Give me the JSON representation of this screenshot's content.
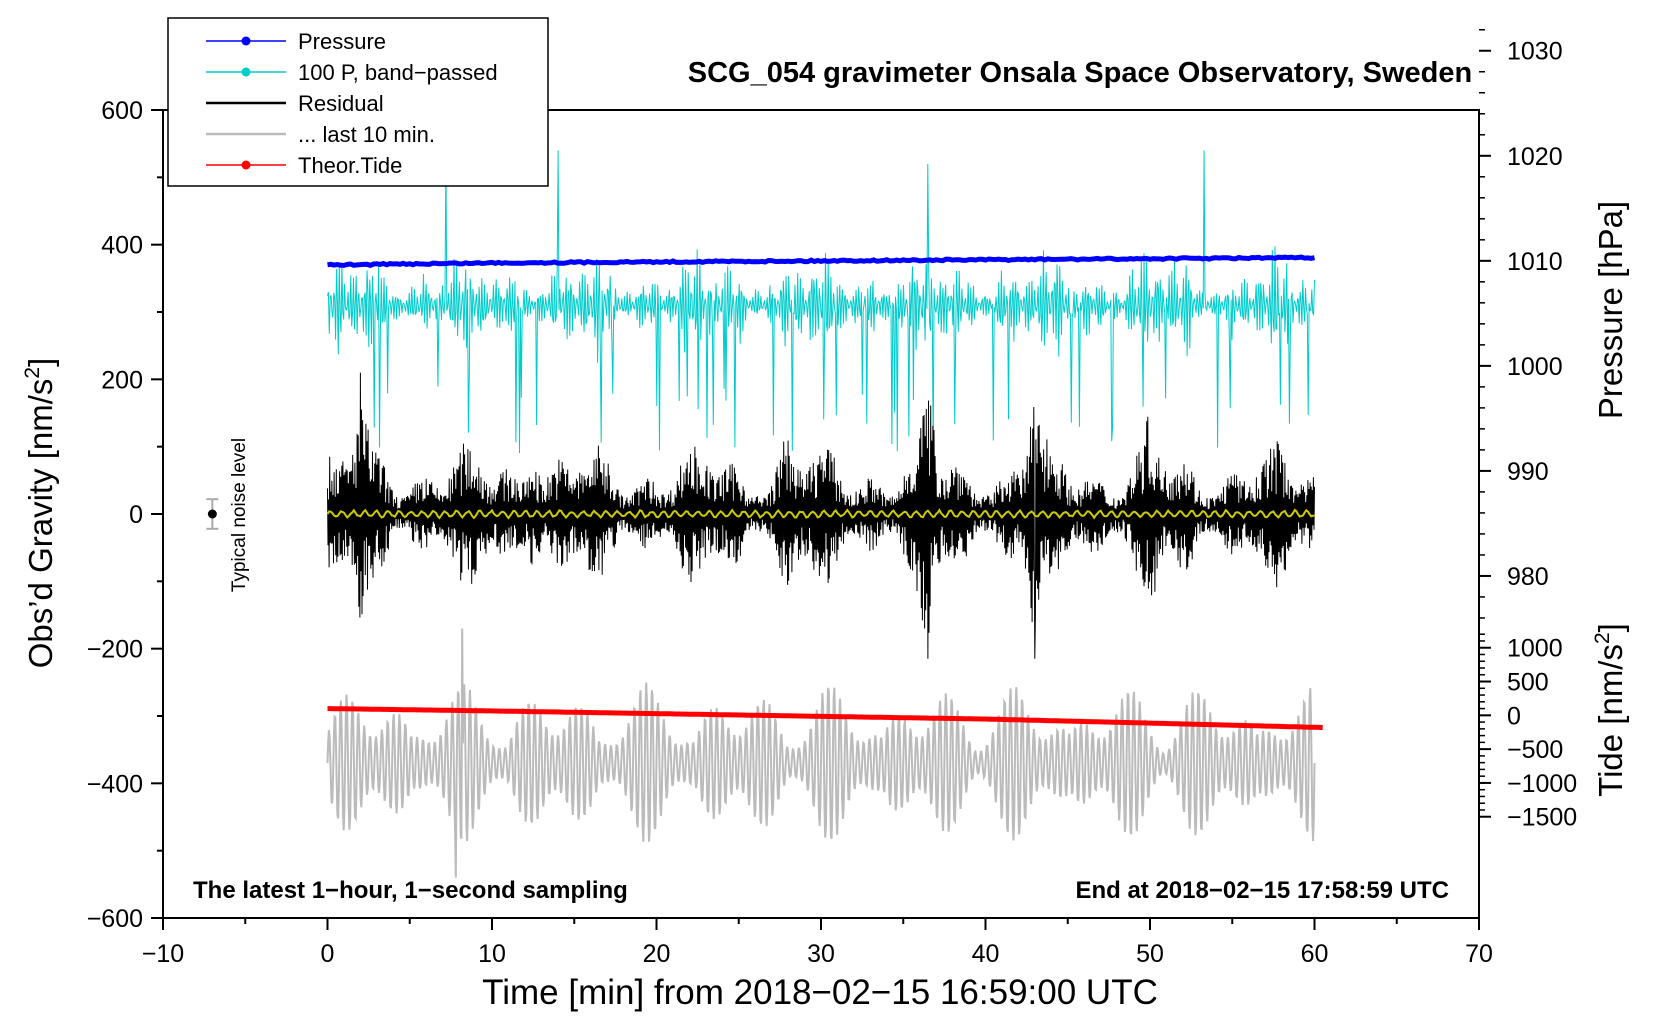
{
  "chart_data": {
    "type": "line",
    "title": "SCG_054 gravimeter Onsala Space Observatory, Sweden",
    "xlabel": "Time [min] from 2018−02−15 16:59:00 UTC",
    "ylabel": "Obs’d Gravity [nm/s2]",
    "ylabel_main": "Obs’d Gravity [nm/s",
    "ylabel_sup": "2",
    "ylabel_close": "]",
    "xlim": [
      -10,
      70
    ],
    "ylim": [
      -600,
      600
    ],
    "x_ticks": [
      -10,
      0,
      10,
      20,
      30,
      40,
      50,
      60,
      70
    ],
    "x_tick_labels": [
      "−10",
      "0",
      "10",
      "20",
      "30",
      "40",
      "50",
      "60",
      "70"
    ],
    "y_ticks": [
      -600,
      -400,
      -200,
      0,
      200,
      400,
      600
    ],
    "y_tick_labels": [
      "−600",
      "−400",
      "−200",
      "0",
      "200",
      "400",
      "600"
    ],
    "pressure_axis": {
      "label": "Pressure [hPa]",
      "ticks": [
        980,
        990,
        1000,
        1010,
        1020,
        1030
      ],
      "tick_labels": [
        "980",
        "990",
        "1000",
        "1010",
        "1020",
        "1030"
      ],
      "gravity_at_1010": 376,
      "gravity_per_hpa": -15.6
    },
    "tide_axis": {
      "label_main": "Tide [nm/s",
      "label_sup": "2",
      "label_close": "]",
      "ticks": [
        -1500,
        -1000,
        -500,
        0,
        500,
        1000
      ],
      "tick_labels": [
        "−1500",
        "−1000",
        "−500",
        "0",
        "500",
        "1000"
      ],
      "gravity_at_0": -299,
      "gravity_per_unit": 0.1004
    },
    "annotations": {
      "bottom_left": "The latest 1−hour, 1−second sampling",
      "bottom_right": "End at 2018−02−15 17:58:59 UTC",
      "noise_label": "Typical noise level"
    },
    "noise_level": {
      "x": -7,
      "y": 0,
      "err": 22
    },
    "legend": [
      {
        "label": "Pressure",
        "color": "#0000ff",
        "marker": true
      },
      {
        "label": "100 P, band−passed",
        "color": "#00cccc",
        "marker": true
      },
      {
        "label": "Residual",
        "color": "#000000",
        "marker": false
      },
      {
        "label": "... last 10 min.",
        "color": "#bbbbbb",
        "marker": false
      },
      {
        "label": "Theor.Tide",
        "color": "#ff0000",
        "marker": true
      }
    ],
    "series": [
      {
        "name": "Pressure",
        "color": "#0000ff",
        "x": [
          0,
          10,
          20,
          30,
          40,
          50,
          60
        ],
        "y": [
          1010.4,
          1010.2,
          1010.1,
          1010.0,
          1009.9,
          1009.8,
          1009.7
        ]
      },
      {
        "name": "100 P, band−passed",
        "color": "#00cccc",
        "x_range": [
          0,
          60
        ],
        "center": 310,
        "amplitude": 90,
        "peaks": [
          [
            7.2,
            540
          ],
          [
            14,
            540
          ],
          [
            36.5,
            520
          ],
          [
            53.3,
            540
          ]
        ]
      },
      {
        "name": "Residual",
        "color": "#000000",
        "x_range": [
          0,
          60
        ],
        "center": 0,
        "amplitude": 110,
        "peaks": [
          [
            2,
            210
          ],
          [
            36.5,
            -215
          ],
          [
            43,
            -215
          ]
        ]
      },
      {
        "name": "Residual smoothed",
        "color": "#cccc00",
        "x_range": [
          0,
          60
        ],
        "center": 0,
        "amplitude": 6
      },
      {
        "name": "... last 10 min.",
        "color": "#bbbbbb",
        "x_range": [
          0,
          60
        ],
        "center": -370,
        "amplitude": 100,
        "peaks": [
          [
            8.2,
            -170
          ],
          [
            7.8,
            -540
          ]
        ]
      },
      {
        "name": "Theor.Tide",
        "color": "#ff0000",
        "x": [
          0,
          10,
          20,
          30,
          40,
          50,
          60.5
        ],
        "y": [
          100,
          65,
          25,
          -15,
          -55,
          -115,
          -180
        ]
      }
    ]
  }
}
